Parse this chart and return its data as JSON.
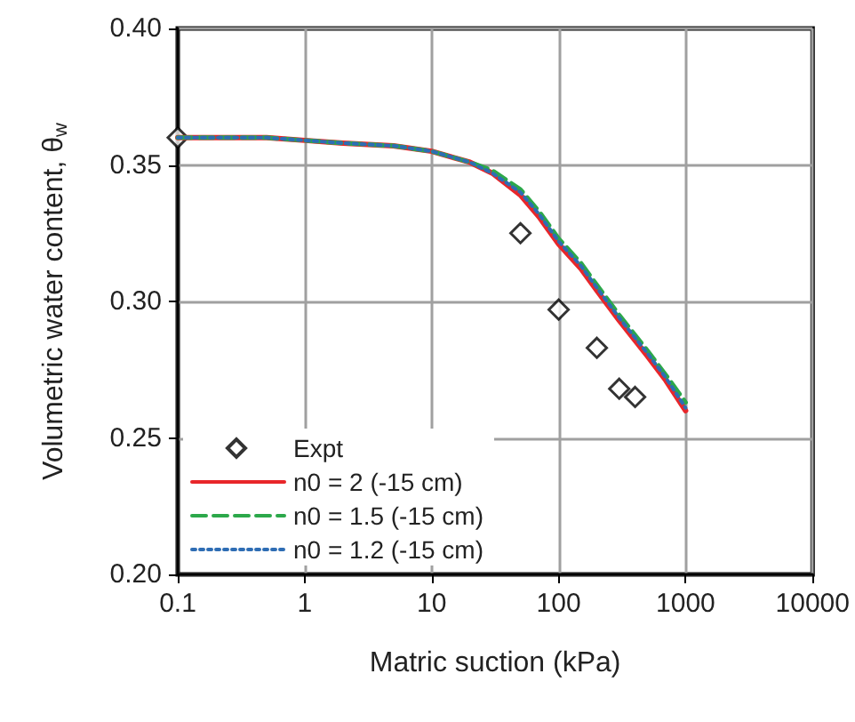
{
  "chart_data": {
    "type": "line",
    "xlabel": "Matric suction (kPa)",
    "ylabel": "Volumetric water content, θ$_{w}$",
    "log": "x",
    "grid": true,
    "legend": "bottom left",
    "xlim": [
      0.1,
      10000
    ],
    "xticks": [
      0.1,
      1,
      10,
      100,
      1000,
      10000
    ],
    "ylim": [
      0.2,
      0.4
    ],
    "yticks": [
      {
        "value": 0.2,
        "label": "0.20"
      },
      {
        "value": 0.25,
        "label": "0.25"
      },
      {
        "value": 0.3,
        "label": "0.30"
      },
      {
        "value": 0.35,
        "label": "0.35"
      },
      {
        "value": 0.4,
        "label": "0.40"
      }
    ],
    "series": [
      {
        "name": "Expt",
        "type": "scatter",
        "marker": "diamond",
        "color": "#000000",
        "x": [
          0.1,
          50,
          100,
          200,
          300,
          400
        ],
        "values": [
          0.36,
          0.325,
          0.297,
          0.283,
          0.268,
          0.265
        ]
      },
      {
        "name": "n0 = 2 (-15 cm)",
        "type": "line",
        "line_style": "solid",
        "marker": "none",
        "color": "#e8262a",
        "x": [
          0.1,
          0.2,
          0.5,
          1,
          2,
          5,
          10,
          20,
          30,
          50,
          70,
          100,
          150,
          200,
          300,
          500,
          700,
          1000
        ],
        "values": [
          0.36,
          0.36,
          0.36,
          0.359,
          0.358,
          0.357,
          0.355,
          0.351,
          0.347,
          0.339,
          0.331,
          0.321,
          0.312,
          0.304,
          0.293,
          0.28,
          0.271,
          0.26
        ]
      },
      {
        "name": "n0 = 1.5 (-15 cm)",
        "type": "line",
        "line_style": "dashed",
        "marker": "none",
        "color": "#2ca84a",
        "x": [
          0.1,
          0.2,
          0.5,
          1,
          2,
          5,
          10,
          20,
          30,
          50,
          70,
          100,
          150,
          200,
          300,
          500,
          700,
          1000
        ],
        "values": [
          0.36,
          0.36,
          0.36,
          0.359,
          0.358,
          0.357,
          0.355,
          0.351,
          0.348,
          0.341,
          0.333,
          0.323,
          0.314,
          0.306,
          0.295,
          0.282,
          0.273,
          0.263
        ]
      },
      {
        "name": "n0 = 1.2 (-15 cm)",
        "type": "line",
        "line_style": "dotted",
        "marker": "none",
        "color": "#2e6db4",
        "x": [
          0.1,
          0.2,
          0.5,
          1,
          2,
          5,
          10,
          20,
          30,
          50,
          70,
          100,
          150,
          200,
          300,
          500,
          700,
          1000
        ],
        "values": [
          0.36,
          0.36,
          0.36,
          0.359,
          0.358,
          0.357,
          0.355,
          0.351,
          0.347,
          0.34,
          0.332,
          0.322,
          0.313,
          0.305,
          0.294,
          0.281,
          0.272,
          0.261
        ]
      }
    ]
  }
}
